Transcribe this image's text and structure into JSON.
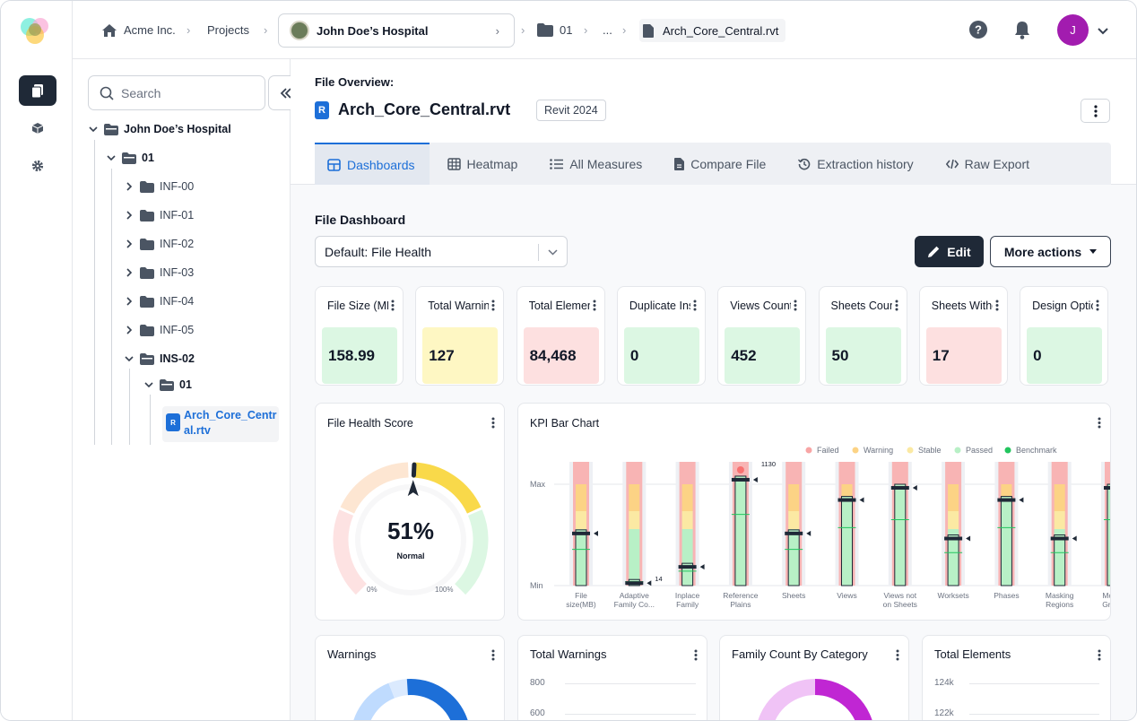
{
  "breadcrumb": {
    "org": "Acme Inc.",
    "projects": "Projects",
    "project": "John Doe’s Hospital",
    "folder": "01",
    "ellipsis": "...",
    "file": "Arch_Core_Central.rvt"
  },
  "user": {
    "initial": "J"
  },
  "tree": {
    "search_placeholder": "Search",
    "root": "John Doe’s Hospital",
    "level1": "01",
    "items": [
      "INF-00",
      "INF-01",
      "INF-02",
      "INF-03",
      "INF-04",
      "INF-05"
    ],
    "ins": "INS-02",
    "ins_child": "01",
    "file": "Arch_Core_Central.rtv"
  },
  "overview": {
    "label": "File Overview:",
    "badge": "R",
    "title": "Arch_Core_Central.rvt",
    "version": "Revit 2024"
  },
  "tabs": [
    "Dashboards",
    "Heatmap",
    "All Measures",
    "Compare File",
    "Extraction history",
    "Raw Export"
  ],
  "dashboard": {
    "title": "File Dashboard",
    "selected": "Default: File Health",
    "edit": "Edit",
    "more": "More actions"
  },
  "kpis": [
    {
      "title": "File Size (MB)",
      "value": "158.99",
      "status": "passed"
    },
    {
      "title": "Total Warnings",
      "value": "127",
      "status": "stable"
    },
    {
      "title": "Total Elements",
      "value": "84,468",
      "status": "failed"
    },
    {
      "title": "Duplicate Instances",
      "value": "0",
      "status": "passed"
    },
    {
      "title": "Views Count",
      "value": "452",
      "status": "passed"
    },
    {
      "title": "Sheets Count",
      "value": "50",
      "status": "passed"
    },
    {
      "title": "Sheets Without Views",
      "value": "17",
      "status": "failed"
    },
    {
      "title": "Design Options",
      "value": "0",
      "status": "passed"
    }
  ],
  "colors": {
    "passed": "#dcf7e3",
    "stable": "#fef7c3",
    "failed": "#fde0e0",
    "accent": "#1d6fd8",
    "dark": "#1f2937"
  },
  "health": {
    "title": "File Health Score",
    "percent": "51%",
    "status": "Normal",
    "min": "0%",
    "max": "100%",
    "score": 0.51
  },
  "kpi_chart": {
    "title": "KPI Bar Chart",
    "legend": [
      "Failed",
      "Warning",
      "Stable",
      "Passed",
      "Benchmark"
    ],
    "ymax": "Max",
    "ymin": "Min",
    "labels": [
      [
        "File",
        "size(MB)"
      ],
      [
        "Adaptive",
        "Family Co..."
      ],
      [
        "Inplace",
        "Family"
      ],
      [
        "Reference",
        "Plains"
      ],
      [
        "Sheets",
        ""
      ],
      [
        "Views",
        ""
      ],
      [
        "Views not",
        "on Sheets"
      ],
      [
        "Worksets",
        ""
      ],
      [
        "Phases",
        ""
      ],
      [
        "Masking",
        "Regions"
      ],
      [
        "Model",
        "Group"
      ]
    ],
    "annotations": [
      "1130",
      "14"
    ],
    "values": [
      0.55,
      0.06,
      0.22,
      1.08,
      0.55,
      0.88,
      1.0,
      0.5,
      0.88,
      0.5,
      1.0
    ]
  },
  "bottom_cards": [
    {
      "title": "Warnings"
    },
    {
      "title": "Total Warnings",
      "ticks": [
        "800",
        "600"
      ]
    },
    {
      "title": "Family Count By Category"
    },
    {
      "title": "Total Elements",
      "ticks": [
        "124k",
        "122k"
      ]
    }
  ]
}
